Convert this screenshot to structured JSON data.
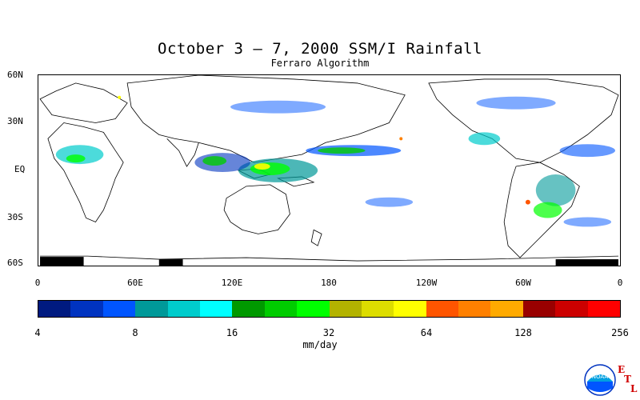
{
  "title": "October 3 – 7, 2000 SSM/I Rainfall",
  "subtitle": "Ferraro Algorithm",
  "lat_labels": [
    "60N",
    "30N",
    "EQ",
    "30S",
    "60S"
  ],
  "lon_labels": [
    "0",
    "60E",
    "120E",
    "180",
    "120W",
    "60W",
    "0"
  ],
  "colorbar": {
    "colors": [
      "#001a80",
      "#0033c0",
      "#0055ff",
      "#009999",
      "#00cccc",
      "#00ffff",
      "#009900",
      "#00cc00",
      "#00ff00",
      "#b3b300",
      "#dddd00",
      "#ffff00",
      "#ff5500",
      "#ff8000",
      "#ffaa00",
      "#990000",
      "#cc0000",
      "#ff0000"
    ],
    "tick_labels": [
      "4",
      "8",
      "16",
      "32",
      "64",
      "128",
      "256"
    ],
    "units": "mm/day"
  },
  "logo": {
    "text": "NOAA",
    "letters": [
      "E",
      "T",
      "L"
    ]
  },
  "map": {
    "land_color": "#000000",
    "ocean_color": "#ffffff",
    "ice_color": "#000000"
  }
}
